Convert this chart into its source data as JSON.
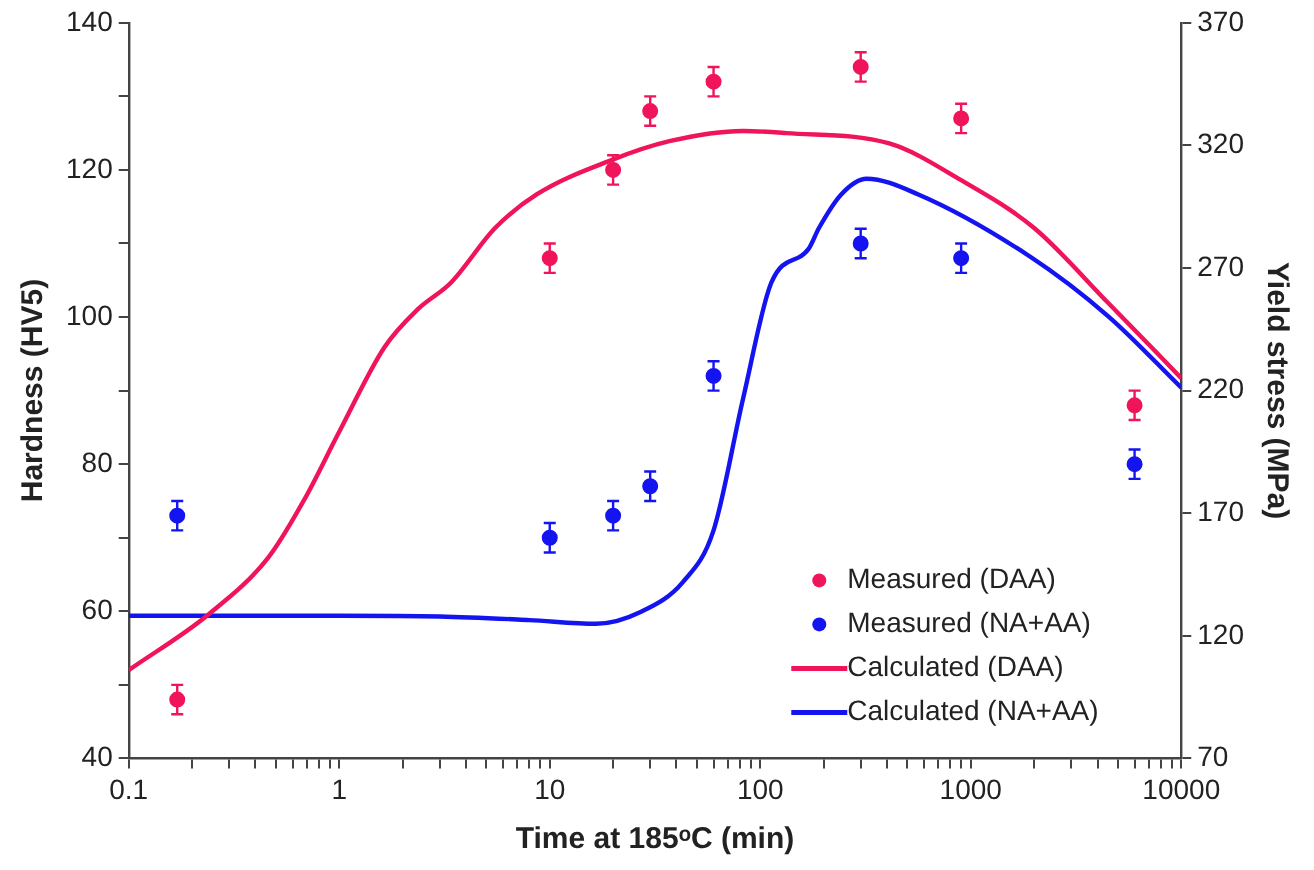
{
  "chart_data": {
    "type": "scatter",
    "xlabel": "Time at 185ᵒC (min)",
    "ylabel": "Hardness (HV5)",
    "y2label": "Yield stress (MPa)",
    "log": "x",
    "xlim": [
      0.1,
      10000
    ],
    "xticks": [
      {
        "value": 0.1,
        "label": "0.1"
      },
      {
        "value": 0.2,
        "label": null
      },
      {
        "value": 0.3,
        "label": null
      },
      {
        "value": 0.4,
        "label": null
      },
      {
        "value": 0.5,
        "label": null
      },
      {
        "value": 0.6,
        "label": null
      },
      {
        "value": 0.7,
        "label": null
      },
      {
        "value": 0.8,
        "label": null
      },
      {
        "value": 0.9,
        "label": null
      },
      1,
      {
        "value": 2,
        "label": null
      },
      {
        "value": 3,
        "label": null
      },
      {
        "value": 4,
        "label": null
      },
      {
        "value": 5,
        "label": null
      },
      {
        "value": 6,
        "label": null
      },
      {
        "value": 7,
        "label": null
      },
      {
        "value": 8,
        "label": null
      },
      {
        "value": 9,
        "label": null
      },
      10,
      {
        "value": 20,
        "label": null
      },
      {
        "value": 30,
        "label": null
      },
      {
        "value": 40,
        "label": null
      },
      {
        "value": 50,
        "label": null
      },
      {
        "value": 60,
        "label": null
      },
      {
        "value": 70,
        "label": null
      },
      {
        "value": 80,
        "label": null
      },
      {
        "value": 90,
        "label": null
      },
      100,
      {
        "value": 200,
        "label": null
      },
      {
        "value": 300,
        "label": null
      },
      {
        "value": 400,
        "label": null
      },
      {
        "value": 500,
        "label": null
      },
      {
        "value": 600,
        "label": null
      },
      {
        "value": 700,
        "label": null
      },
      {
        "value": 800,
        "label": null
      },
      {
        "value": 900,
        "label": null
      },
      1000,
      {
        "value": 2000,
        "label": null
      },
      {
        "value": 3000,
        "label": null
      },
      {
        "value": 4000,
        "label": null
      },
      {
        "value": 5000,
        "label": null
      },
      {
        "value": 6000,
        "label": null
      },
      {
        "value": 7000,
        "label": null
      },
      {
        "value": 8000,
        "label": null
      },
      {
        "value": 9000,
        "label": null
      },
      10000
    ],
    "ylim": [
      40,
      140
    ],
    "yticks": [
      40,
      {
        "value": 50,
        "label": null
      },
      60,
      {
        "value": 70,
        "label": null
      },
      80,
      {
        "value": 90,
        "label": null
      },
      100,
      {
        "value": 110,
        "label": null
      },
      120,
      {
        "value": 130,
        "label": null
      },
      140
    ],
    "y2lim": [
      70,
      370
    ],
    "y2ticks": [
      70,
      120,
      170,
      220,
      270,
      320,
      370
    ],
    "grid": false,
    "legend": "bottom right",
    "series": [
      {
        "name": "Measured (DAA)",
        "marker": "circle",
        "color": "#f0145a",
        "x": [
          0.17,
          10,
          20,
          30,
          60,
          300,
          900,
          6000
        ],
        "values": [
          48,
          108,
          120,
          128,
          132,
          134,
          127,
          88
        ],
        "errors": [
          2,
          2,
          2,
          2,
          2,
          2,
          2,
          2
        ]
      },
      {
        "name": "Measured (NA+AA)",
        "marker": "circle",
        "color": "#1414f0",
        "x": [
          0.17,
          10,
          20,
          30,
          60,
          300,
          900,
          6000
        ],
        "values": [
          73,
          70,
          73,
          77,
          92,
          110,
          108,
          80
        ],
        "errors": [
          2,
          2,
          2,
          2,
          2,
          2,
          2,
          2
        ]
      },
      {
        "name": "Calculated (DAA)",
        "type": "line",
        "marker": "none",
        "line_style": "solid",
        "color": "#f0145a",
        "x": [
          0.1,
          0.24,
          0.46,
          0.68,
          1,
          1.64,
          2.35,
          3.4,
          5.5,
          8.7,
          19.5,
          37,
          83,
          133,
          410,
          900,
          2000,
          4500,
          10000
        ],
        "values": [
          52,
          59.6,
          67.3,
          75.1,
          84.4,
          95.9,
          101,
          104.7,
          112.1,
          116.7,
          121.3,
          123.9,
          125.3,
          125,
          123.6,
          118.6,
          112.1,
          101.9,
          91.7
        ]
      },
      {
        "name": "Calculated (NA+AA)",
        "type": "line",
        "marker": "none",
        "line_style": "solid",
        "color": "#1414f0",
        "x": [
          0.1,
          1,
          3,
          8,
          16.6,
          27,
          43,
          60,
          83,
          113,
          170,
          190,
          243,
          320,
          560,
          1870,
          4500,
          10000
        ],
        "values": [
          59.4,
          59.4,
          59.3,
          58.8,
          58.3,
          59.9,
          64,
          71,
          89,
          104.7,
          109.3,
          112.1,
          116.7,
          118.8,
          116.7,
          108.4,
          100.1,
          90.4
        ]
      }
    ]
  }
}
